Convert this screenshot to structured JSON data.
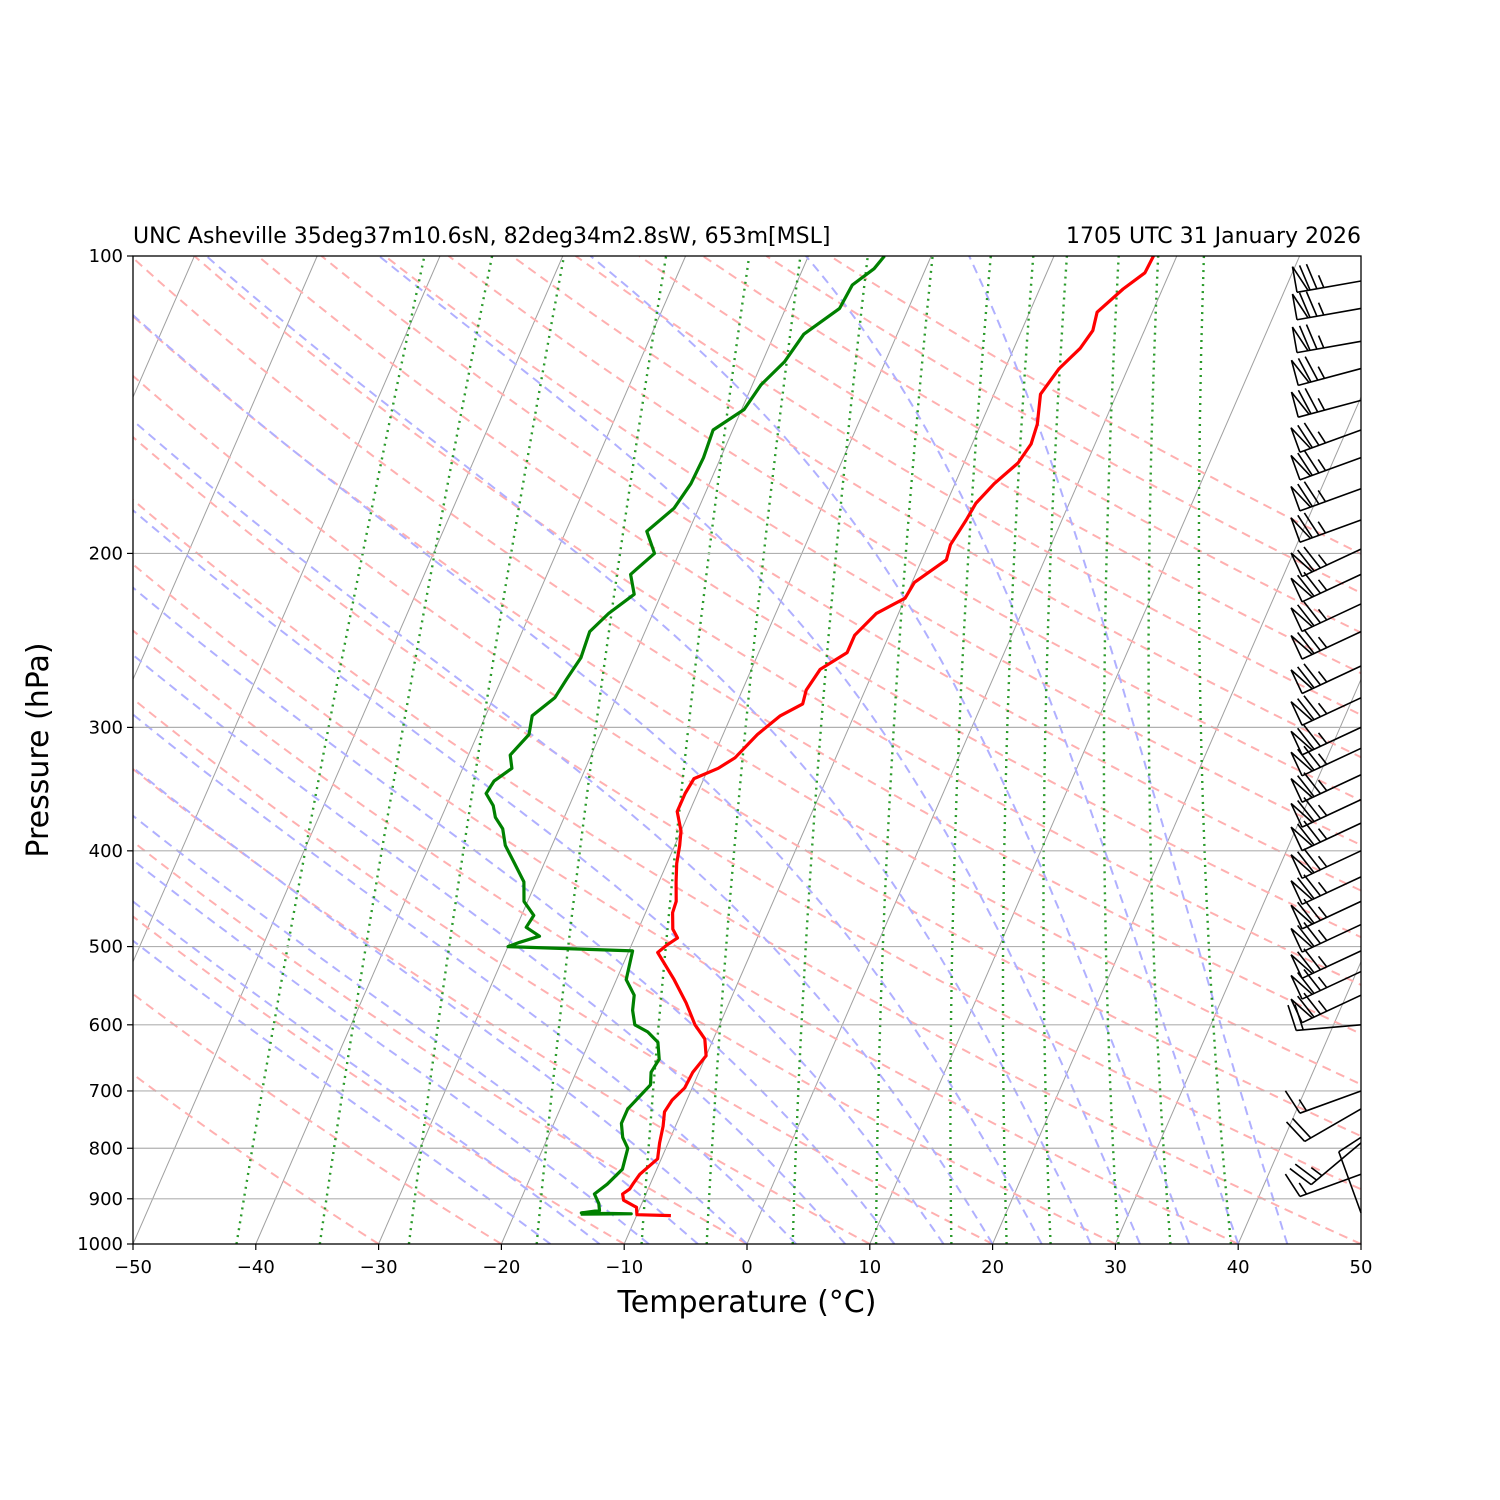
{
  "chart_data": {
    "type": "skew-t",
    "title_left": "UNC Asheville 35deg37m10.6sN, 82deg34m2.8sW, 653m[MSL]",
    "title_right": "1705 UTC 31 January 2026",
    "xlabel": "Temperature (°C)",
    "ylabel": "Pressure (hPa)",
    "xlim": [
      -50,
      50
    ],
    "ylim": [
      1000,
      100
    ],
    "y_scale": "log",
    "x_ticks": [
      -50,
      -40,
      -30,
      -20,
      -10,
      0,
      10,
      20,
      30,
      40,
      50
    ],
    "x_tick_labels": [
      "−50",
      "−40",
      "−30",
      "−20",
      "−10",
      "0",
      "10",
      "20",
      "30",
      "40",
      "50"
    ],
    "y_ticks": [
      1000,
      900,
      800,
      700,
      600,
      500,
      400,
      300,
      200,
      100
    ],
    "y_tick_labels": [
      "1000",
      "900",
      "800",
      "700",
      "600",
      "500",
      "400",
      "300",
      "200",
      "100"
    ],
    "grid": true,
    "background_lines": [
      "isotherms",
      "dry adiabats",
      "moist adiabats",
      "mixing ratio lines"
    ],
    "colors": {
      "temperature": "#ff0000",
      "dewpoint": "#008000",
      "isotherm": "#a0a0a0",
      "dry_adiabat": "#ffb0b0",
      "moist_adiabat": "#b0b0ff",
      "mixing_ratio": "#2a9a2a",
      "barb": "#000000"
    },
    "series": [
      {
        "name": "temperature",
        "points": [
          [
            936,
            -7.2
          ],
          [
            934,
            -10
          ],
          [
            918,
            -10.3
          ],
          [
            903,
            -11.6
          ],
          [
            890,
            -11.9
          ],
          [
            880,
            -11.5
          ],
          [
            868,
            -11.4
          ],
          [
            850,
            -11.2
          ],
          [
            820,
            -10.3
          ],
          [
            790,
            -10.7
          ],
          [
            760,
            -11.0
          ],
          [
            735,
            -11.4
          ],
          [
            715,
            -11.2
          ],
          [
            695,
            -10.6
          ],
          [
            670,
            -10.5
          ],
          [
            645,
            -10.0
          ],
          [
            620,
            -10.7
          ],
          [
            600,
            -12.0
          ],
          [
            570,
            -13.5
          ],
          [
            540,
            -15.3
          ],
          [
            507,
            -17.6
          ],
          [
            498,
            -17.1
          ],
          [
            490,
            -16.5
          ],
          [
            480,
            -17.2
          ],
          [
            462,
            -17.8
          ],
          [
            450,
            -17.9
          ],
          [
            430,
            -18.6
          ],
          [
            412,
            -19.2
          ],
          [
            395,
            -19.6
          ],
          [
            382,
            -20.0
          ],
          [
            365,
            -21.0
          ],
          [
            350,
            -21.0
          ],
          [
            338,
            -20.8
          ],
          [
            330,
            -19.2
          ],
          [
            322,
            -18.2
          ],
          [
            305,
            -17.2
          ],
          [
            292,
            -16.0
          ],
          [
            284,
            -14.6
          ],
          [
            275,
            -14.8
          ],
          [
            262,
            -14.4
          ],
          [
            252,
            -12.8
          ],
          [
            242,
            -12.8
          ],
          [
            230,
            -11.8
          ],
          [
            222,
            -10.0
          ],
          [
            214,
            -9.8
          ],
          [
            203,
            -8.0
          ],
          [
            196,
            -8.2
          ],
          [
            185,
            -7.8
          ],
          [
            178,
            -7.6
          ],
          [
            170,
            -6.8
          ],
          [
            162,
            -5.6
          ],
          [
            155,
            -5.2
          ],
          [
            148,
            -5.4
          ],
          [
            138,
            -6.2
          ],
          [
            130,
            -5.6
          ],
          [
            124,
            -4.6
          ],
          [
            119,
            -4.2
          ],
          [
            114,
            -4.5
          ],
          [
            108,
            -3.2
          ],
          [
            104,
            -2.0
          ],
          [
            100,
            -1.9
          ]
        ]
      },
      {
        "name": "dewpoint",
        "points": [
          [
            933,
            -14.6
          ],
          [
            932,
            -10.5
          ],
          [
            930,
            -14.6
          ],
          [
            925,
            -13.2
          ],
          [
            910,
            -13.5
          ],
          [
            890,
            -14.2
          ],
          [
            870,
            -13.5
          ],
          [
            840,
            -12.8
          ],
          [
            800,
            -13.1
          ],
          [
            780,
            -13.9
          ],
          [
            755,
            -14.5
          ],
          [
            730,
            -14.5
          ],
          [
            710,
            -14.0
          ],
          [
            690,
            -13.5
          ],
          [
            670,
            -13.9
          ],
          [
            650,
            -13.7
          ],
          [
            625,
            -14.4
          ],
          [
            610,
            -15.6
          ],
          [
            600,
            -16.9
          ],
          [
            580,
            -17.6
          ],
          [
            560,
            -18.0
          ],
          [
            540,
            -19.2
          ],
          [
            505,
            -19.7
          ],
          [
            500,
            -30.0
          ],
          [
            495,
            -29.2
          ],
          [
            488,
            -27.8
          ],
          [
            478,
            -29.2
          ],
          [
            465,
            -29.0
          ],
          [
            450,
            -30.3
          ],
          [
            430,
            -31.0
          ],
          [
            412,
            -32.4
          ],
          [
            395,
            -33.8
          ],
          [
            380,
            -34.6
          ],
          [
            370,
            -35.6
          ],
          [
            360,
            -36.2
          ],
          [
            350,
            -37.2
          ],
          [
            340,
            -37.0
          ],
          [
            330,
            -36.0
          ],
          [
            320,
            -36.6
          ],
          [
            305,
            -35.8
          ],
          [
            292,
            -36.2
          ],
          [
            280,
            -35.0
          ],
          [
            268,
            -34.7
          ],
          [
            255,
            -34.3
          ],
          [
            240,
            -34.5
          ],
          [
            230,
            -33.6
          ],
          [
            220,
            -32.2
          ],
          [
            210,
            -33.2
          ],
          [
            200,
            -32.0
          ],
          [
            190,
            -33.4
          ],
          [
            180,
            -32.0
          ],
          [
            170,
            -31.5
          ],
          [
            160,
            -31.4
          ],
          [
            150,
            -31.6
          ],
          [
            143,
            -29.8
          ],
          [
            135,
            -29.3
          ],
          [
            128,
            -28.2
          ],
          [
            120,
            -27.6
          ],
          [
            113,
            -25.6
          ],
          [
            107,
            -25.4
          ],
          [
            103,
            -24.2
          ],
          [
            100,
            -23.8
          ]
        ]
      }
    ],
    "wind_barbs": [
      {
        "p": 930,
        "dir": 340,
        "spd": 10
      },
      {
        "p": 850,
        "dir": 250,
        "spd": 15
      },
      {
        "p": 790,
        "dir": 230,
        "spd": 25
      },
      {
        "p": 730,
        "dir": 240,
        "spd": 20
      },
      {
        "p": 700,
        "dir": 250,
        "spd": 15
      },
      {
        "p": 600,
        "dir": 265,
        "spd": 20
      },
      {
        "p": 560,
        "dir": 245,
        "spd": 75
      },
      {
        "p": 530,
        "dir": 245,
        "spd": 75
      },
      {
        "p": 505,
        "dir": 245,
        "spd": 75
      },
      {
        "p": 475,
        "dir": 245,
        "spd": 75
      },
      {
        "p": 450,
        "dir": 245,
        "spd": 75
      },
      {
        "p": 425,
        "dir": 245,
        "spd": 75
      },
      {
        "p": 400,
        "dir": 245,
        "spd": 75
      },
      {
        "p": 375,
        "dir": 245,
        "spd": 75
      },
      {
        "p": 355,
        "dir": 245,
        "spd": 75
      },
      {
        "p": 335,
        "dir": 245,
        "spd": 75
      },
      {
        "p": 315,
        "dir": 245,
        "spd": 75
      },
      {
        "p": 300,
        "dir": 245,
        "spd": 75
      },
      {
        "p": 280,
        "dir": 245,
        "spd": 75
      },
      {
        "p": 260,
        "dir": 245,
        "spd": 75
      },
      {
        "p": 240,
        "dir": 245,
        "spd": 75
      },
      {
        "p": 225,
        "dir": 245,
        "spd": 75
      },
      {
        "p": 210,
        "dir": 245,
        "spd": 75
      },
      {
        "p": 198,
        "dir": 245,
        "spd": 75
      },
      {
        "p": 185,
        "dir": 250,
        "spd": 75
      },
      {
        "p": 172,
        "dir": 250,
        "spd": 75
      },
      {
        "p": 160,
        "dir": 250,
        "spd": 75
      },
      {
        "p": 150,
        "dir": 250,
        "spd": 75
      },
      {
        "p": 140,
        "dir": 255,
        "spd": 75
      },
      {
        "p": 130,
        "dir": 255,
        "spd": 75
      },
      {
        "p": 122,
        "dir": 260,
        "spd": 75
      },
      {
        "p": 113,
        "dir": 260,
        "spd": 75
      },
      {
        "p": 106,
        "dir": 260,
        "spd": 75
      }
    ]
  }
}
